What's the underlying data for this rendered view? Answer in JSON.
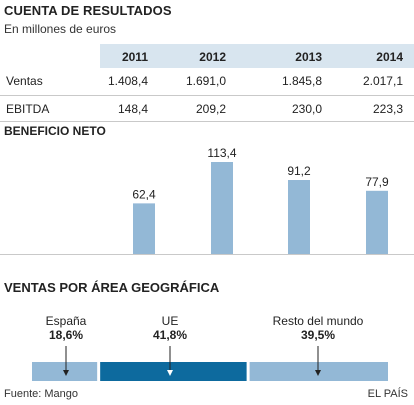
{
  "header": {
    "title": "CUENTA DE RESULTADOS",
    "subtitle": "En millones de euros"
  },
  "table": {
    "columns": [
      "2011",
      "2012",
      "2013",
      "2014"
    ],
    "rows": [
      {
        "label": "Ventas",
        "values": [
          "1.408,4",
          "1.691,0",
          "1.845,8",
          "2.017,1"
        ]
      },
      {
        "label": "EBITDA",
        "values": [
          "148,4",
          "209,2",
          "230,0",
          "223,3"
        ]
      }
    ]
  },
  "chart_data": [
    {
      "type": "bar",
      "title": "BENEFICIO NETO",
      "categories": [
        "2011",
        "2012",
        "2013",
        "2014"
      ],
      "values": [
        62.4,
        113.4,
        91.2,
        77.9
      ],
      "value_labels": [
        "62,4",
        "113,4",
        "91,2",
        "77,9"
      ],
      "ylim": [
        0,
        113.4
      ],
      "color": "#93b8d6",
      "grid": false,
      "legend": "none"
    },
    {
      "type": "bar",
      "orientation": "horizontal-stacked",
      "title": "VENTAS POR ÁREA GEOGRÁFICA",
      "categories": [
        "España",
        "UE",
        "Resto del mundo"
      ],
      "values": [
        18.6,
        41.8,
        39.5
      ],
      "value_labels": [
        "18,6%",
        "41,8%",
        "39,5%"
      ],
      "colors": [
        "#93b8d6",
        "#0d6a9e",
        "#93b8d6"
      ]
    }
  ],
  "footer": {
    "source": "Fuente: Mango",
    "credit": "EL PAÍS"
  }
}
